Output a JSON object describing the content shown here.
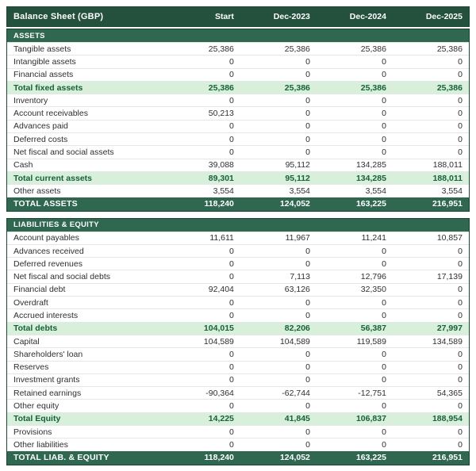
{
  "colors": {
    "header_bg": "#24503e",
    "section_bg": "#2f6751",
    "total_bg": "#2f6751",
    "subtotal_bg": "#d8efdc",
    "subtotal_text": "#17603c",
    "outer_border": "#1c4534",
    "row_divider": "#e4e8e4",
    "body_text": "#2f2f2f"
  },
  "table": {
    "title": "Balance Sheet (GBP)",
    "columns": [
      "Start",
      "Dec-2023",
      "Dec-2024",
      "Dec-2025"
    ],
    "sections": [
      {
        "name": "ASSETS",
        "rows": [
          {
            "label": "Tangible assets",
            "values": [
              "25,386",
              "25,386",
              "25,386",
              "25,386"
            ],
            "style": "normal"
          },
          {
            "label": "Intangible assets",
            "values": [
              "0",
              "0",
              "0",
              "0"
            ],
            "style": "normal"
          },
          {
            "label": "Financial assets",
            "values": [
              "0",
              "0",
              "0",
              "0"
            ],
            "style": "normal"
          },
          {
            "label": "Total fixed assets",
            "values": [
              "25,386",
              "25,386",
              "25,386",
              "25,386"
            ],
            "style": "subtotal"
          },
          {
            "label": "Inventory",
            "values": [
              "0",
              "0",
              "0",
              "0"
            ],
            "style": "normal"
          },
          {
            "label": "Account receivables",
            "values": [
              "50,213",
              "0",
              "0",
              "0"
            ],
            "style": "normal"
          },
          {
            "label": "Advances paid",
            "values": [
              "0",
              "0",
              "0",
              "0"
            ],
            "style": "normal"
          },
          {
            "label": "Deferred costs",
            "values": [
              "0",
              "0",
              "0",
              "0"
            ],
            "style": "normal"
          },
          {
            "label": "Net fiscal and social assets",
            "values": [
              "0",
              "0",
              "0",
              "0"
            ],
            "style": "normal"
          },
          {
            "label": "Cash",
            "values": [
              "39,088",
              "95,112",
              "134,285",
              "188,011"
            ],
            "style": "normal"
          },
          {
            "label": "Total current assets",
            "values": [
              "89,301",
              "95,112",
              "134,285",
              "188,011"
            ],
            "style": "subtotal"
          },
          {
            "label": "Other assets",
            "values": [
              "3,554",
              "3,554",
              "3,554",
              "3,554"
            ],
            "style": "normal"
          },
          {
            "label": "TOTAL ASSETS",
            "values": [
              "118,240",
              "124,052",
              "163,225",
              "216,951"
            ],
            "style": "total"
          }
        ]
      },
      {
        "name": "LIABILITIES & EQUITY",
        "rows": [
          {
            "label": "Account payables",
            "values": [
              "11,611",
              "11,967",
              "11,241",
              "10,857"
            ],
            "style": "normal"
          },
          {
            "label": "Advances received",
            "values": [
              "0",
              "0",
              "0",
              "0"
            ],
            "style": "normal"
          },
          {
            "label": "Deferred revenues",
            "values": [
              "0",
              "0",
              "0",
              "0"
            ],
            "style": "normal"
          },
          {
            "label": "Net fiscal and social debts",
            "values": [
              "0",
              "7,113",
              "12,796",
              "17,139"
            ],
            "style": "normal"
          },
          {
            "label": "Financial debt",
            "values": [
              "92,404",
              "63,126",
              "32,350",
              "0"
            ],
            "style": "normal"
          },
          {
            "label": "Overdraft",
            "values": [
              "0",
              "0",
              "0",
              "0"
            ],
            "style": "normal"
          },
          {
            "label": "Accrued interests",
            "values": [
              "0",
              "0",
              "0",
              "0"
            ],
            "style": "normal"
          },
          {
            "label": "Total debts",
            "values": [
              "104,015",
              "82,206",
              "56,387",
              "27,997"
            ],
            "style": "subtotal"
          },
          {
            "label": "Capital",
            "values": [
              "104,589",
              "104,589",
              "119,589",
              "134,589"
            ],
            "style": "normal"
          },
          {
            "label": "Shareholders' loan",
            "values": [
              "0",
              "0",
              "0",
              "0"
            ],
            "style": "normal"
          },
          {
            "label": "Reserves",
            "values": [
              "0",
              "0",
              "0",
              "0"
            ],
            "style": "normal"
          },
          {
            "label": "Investment grants",
            "values": [
              "0",
              "0",
              "0",
              "0"
            ],
            "style": "normal"
          },
          {
            "label": "Retained earnings",
            "values": [
              "-90,364",
              "-62,744",
              "-12,751",
              "54,365"
            ],
            "style": "normal"
          },
          {
            "label": "Other equity",
            "values": [
              "0",
              "0",
              "0",
              "0"
            ],
            "style": "normal"
          },
          {
            "label": "Total Equity",
            "values": [
              "14,225",
              "41,845",
              "106,837",
              "188,954"
            ],
            "style": "subtotal"
          },
          {
            "label": "Provisions",
            "values": [
              "0",
              "0",
              "0",
              "0"
            ],
            "style": "normal"
          },
          {
            "label": "Other liabilities",
            "values": [
              "0",
              "0",
              "0",
              "0"
            ],
            "style": "normal"
          },
          {
            "label": "TOTAL LIAB. & EQUITY",
            "values": [
              "118,240",
              "124,052",
              "163,225",
              "216,951"
            ],
            "style": "total"
          }
        ]
      }
    ]
  }
}
